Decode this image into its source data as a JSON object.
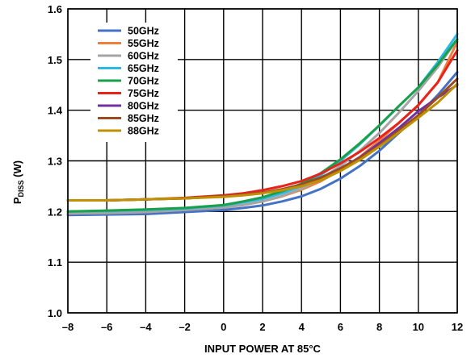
{
  "chart_data": {
    "type": "line",
    "xlabel": "INPUT POWER AT 85°C",
    "ylabel": {
      "main": "P",
      "sub": "DISS",
      "tail": " (W)"
    },
    "xlim": [
      -8,
      12
    ],
    "ylim": [
      1.0,
      1.6
    ],
    "x_ticks": [
      "–8",
      "–6",
      "–4",
      "–2",
      "0",
      "2",
      "4",
      "6",
      "8",
      "10",
      "12"
    ],
    "y_ticks": [
      "1.0",
      "1.1",
      "1.2",
      "1.3",
      "1.4",
      "1.5",
      "1.6"
    ],
    "x_tick_values": [
      -8,
      -6,
      -4,
      -2,
      0,
      2,
      4,
      6,
      8,
      10,
      12
    ],
    "y_tick_values": [
      1.0,
      1.1,
      1.2,
      1.3,
      1.4,
      1.5,
      1.6
    ],
    "grid": true,
    "legend_position": "top-left",
    "x": [
      -8,
      -6,
      -4,
      -2,
      0,
      1,
      2,
      3,
      4,
      5,
      6,
      7,
      8,
      9,
      10,
      11,
      12
    ],
    "series": [
      {
        "name": "50GHz",
        "color": "#4472c4",
        "values": [
          1.193,
          1.194,
          1.195,
          1.199,
          1.203,
          1.207,
          1.212,
          1.22,
          1.23,
          1.245,
          1.265,
          1.29,
          1.32,
          1.355,
          1.39,
          1.43,
          1.475
        ]
      },
      {
        "name": "55GHz",
        "color": "#ed8040",
        "values": [
          1.196,
          1.197,
          1.199,
          1.203,
          1.208,
          1.213,
          1.22,
          1.23,
          1.243,
          1.26,
          1.282,
          1.308,
          1.34,
          1.375,
          1.41,
          1.455,
          1.535
        ]
      },
      {
        "name": "60GHz",
        "color": "#a5a5a5",
        "values": [
          1.196,
          1.197,
          1.199,
          1.203,
          1.208,
          1.213,
          1.22,
          1.231,
          1.245,
          1.265,
          1.29,
          1.32,
          1.355,
          1.395,
          1.438,
          1.485,
          1.54
        ]
      },
      {
        "name": "65GHz",
        "color": "#2eb8e6",
        "values": [
          1.2,
          1.201,
          1.203,
          1.206,
          1.212,
          1.218,
          1.225,
          1.236,
          1.25,
          1.272,
          1.3,
          1.333,
          1.37,
          1.408,
          1.445,
          1.495,
          1.55
        ]
      },
      {
        "name": "70GHz",
        "color": "#1aa04a",
        "values": [
          1.2,
          1.202,
          1.204,
          1.207,
          1.213,
          1.22,
          1.228,
          1.24,
          1.255,
          1.276,
          1.303,
          1.335,
          1.37,
          1.408,
          1.445,
          1.49,
          1.54
        ]
      },
      {
        "name": "75GHz",
        "color": "#e8231b",
        "values": [
          1.222,
          1.222,
          1.224,
          1.227,
          1.232,
          1.236,
          1.242,
          1.25,
          1.26,
          1.275,
          1.295,
          1.318,
          1.345,
          1.375,
          1.41,
          1.455,
          1.518
        ]
      },
      {
        "name": "80GHz",
        "color": "#7030a0",
        "values": [
          1.222,
          1.222,
          1.224,
          1.226,
          1.23,
          1.233,
          1.237,
          1.244,
          1.253,
          1.267,
          1.285,
          1.307,
          1.335,
          1.365,
          1.398,
          1.425,
          1.45
        ]
      },
      {
        "name": "85GHz",
        "color": "#9c4a1f",
        "values": [
          1.222,
          1.222,
          1.224,
          1.226,
          1.23,
          1.233,
          1.237,
          1.244,
          1.253,
          1.267,
          1.285,
          1.306,
          1.33,
          1.36,
          1.39,
          1.425,
          1.462
        ]
      },
      {
        "name": "88GHz",
        "color": "#bf9000",
        "values": [
          1.222,
          1.222,
          1.224,
          1.226,
          1.229,
          1.232,
          1.236,
          1.242,
          1.25,
          1.262,
          1.28,
          1.302,
          1.328,
          1.356,
          1.385,
          1.415,
          1.452
        ]
      }
    ]
  }
}
